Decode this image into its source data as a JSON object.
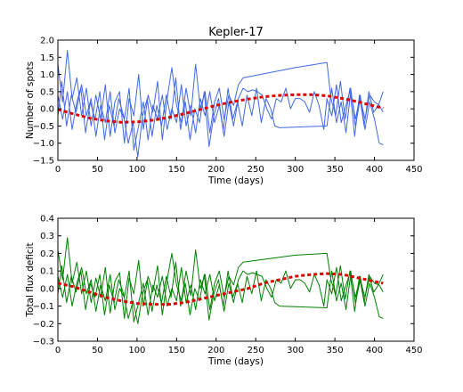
{
  "chart_data": [
    {
      "type": "line",
      "title": "Kepler-17",
      "xlabel": "Time (days)",
      "ylabel": "Number of spots",
      "xlim": [
        0,
        450
      ],
      "ylim": [
        -1.5,
        2.0
      ],
      "xticks": [
        "0",
        "50",
        "100",
        "150",
        "200",
        "250",
        "300",
        "350",
        "400",
        "450"
      ],
      "xtick_values": [
        0,
        50,
        100,
        150,
        200,
        250,
        300,
        350,
        400,
        450
      ],
      "yticks": [
        "2.0",
        "1.5",
        "1.0",
        "0.5",
        "0.0",
        "−0.5",
        "−1.0",
        "−1.5"
      ],
      "ytick_values": [
        2.0,
        1.5,
        1.0,
        0.5,
        0.0,
        -0.5,
        -1.0,
        -1.5
      ],
      "grid": false,
      "series": [
        {
          "color": "#4169e1",
          "style": "solid",
          "x": [
            0,
            6,
            12,
            18,
            24,
            30,
            36,
            42,
            48,
            54,
            60,
            66,
            72,
            78,
            84,
            90,
            96,
            102,
            108,
            114,
            120,
            126,
            132,
            138,
            144,
            150,
            156,
            162,
            168,
            174,
            180,
            186,
            192,
            198,
            204,
            210,
            216,
            222,
            228,
            234,
            300,
            340,
            345,
            351,
            357,
            363,
            369,
            375,
            381,
            387,
            393,
            399,
            405,
            411
          ],
          "y": [
            1.3,
            0.2,
            1.7,
            0.3,
            0.9,
            -0.2,
            0.6,
            -0.5,
            0.4,
            -0.3,
            0.7,
            -0.8,
            0.2,
            0.5,
            -1.0,
            0.3,
            -0.2,
            1.0,
            -0.6,
            0.4,
            -0.1,
            0.8,
            -0.9,
            0.3,
            1.2,
            0.1,
            -0.4,
            0.6,
            -0.2,
            1.3,
            0.0,
            0.5,
            -0.7,
            0.2,
            0.6,
            -0.3,
            0.4,
            0.1,
            0.7,
            0.9,
            1.2,
            1.35,
            0.3,
            -0.2,
            0.8,
            -0.3,
            0.6,
            -0.8,
            0.4,
            -0.5,
            0.5,
            -0.1,
            0.1,
            0.5
          ]
        },
        {
          "color": "#4169e1",
          "style": "solid",
          "x": [
            0,
            5,
            11,
            17,
            23,
            29,
            35,
            41,
            47,
            53,
            59,
            65,
            71,
            77,
            83,
            89,
            95,
            101,
            107,
            113,
            119,
            125,
            131,
            137,
            143,
            149,
            155,
            161,
            167,
            173,
            179,
            185,
            191,
            197,
            203,
            209,
            215,
            221,
            227,
            233,
            239,
            245,
            251,
            257,
            263,
            269,
            274,
            280,
            340,
            346,
            352,
            358,
            364,
            370,
            376,
            382,
            388,
            394,
            400,
            406,
            411
          ],
          "y": [
            -0.2,
            0.8,
            -0.5,
            0.4,
            -0.1,
            0.6,
            -0.7,
            0.2,
            -0.3,
            0.5,
            -0.9,
            0.1,
            -0.5,
            0.3,
            -0.2,
            -1.0,
            -0.4,
            -1.4,
            -0.2,
            0.3,
            -0.8,
            0.1,
            -0.5,
            0.4,
            -0.3,
            0.9,
            -0.6,
            0.2,
            -0.9,
            0.0,
            -0.4,
            0.5,
            -1.1,
            -0.2,
            0.3,
            -0.6,
            0.6,
            -0.3,
            0.2,
            -0.5,
            0.4,
            -0.2,
            0.6,
            -0.4,
            0.3,
            0.0,
            -0.5,
            -0.55,
            -0.5,
            0.6,
            -0.4,
            0.2,
            -0.7,
            0.5,
            -0.3,
            0.4,
            -0.6,
            0.2,
            -0.3,
            -1.0,
            -1.05
          ]
        },
        {
          "color": "#4169e1",
          "style": "solid",
          "x": [
            0,
            6,
            12,
            18,
            24,
            30,
            36,
            42,
            48,
            54,
            60,
            66,
            72,
            78,
            84,
            90,
            96,
            102,
            108,
            114,
            120,
            126,
            132,
            138,
            144,
            150,
            156,
            162,
            168,
            174,
            180,
            186,
            192,
            198,
            204,
            210,
            216,
            222,
            228,
            234,
            240,
            246,
            252,
            258,
            264,
            270,
            276,
            282,
            288,
            294,
            300,
            306,
            312,
            318,
            324,
            330,
            336,
            340,
            346,
            352,
            358,
            364,
            370,
            376,
            382,
            388,
            394,
            400,
            406,
            411
          ],
          "y": [
            0.4,
            -0.3,
            0.5,
            -0.6,
            0.2,
            0.7,
            -0.2,
            0.3,
            -0.8,
            0.1,
            -0.4,
            0.5,
            -0.7,
            0.0,
            -0.3,
            0.6,
            -1.2,
            -0.5,
            0.2,
            -0.9,
            0.1,
            -0.3,
            0.4,
            -0.6,
            0.0,
            -0.4,
            0.7,
            -0.5,
            0.1,
            -0.7,
            0.3,
            -0.2,
            0.5,
            -0.4,
            0.1,
            -0.8,
            0.2,
            -0.5,
            0.3,
            0.6,
            0.5,
            0.55,
            0.5,
            0.4,
            0.0,
            -0.3,
            0.3,
            0.2,
            0.6,
            0.0,
            0.3,
            0.3,
            0.2,
            -0.1,
            0.5,
            0.1,
            -0.6,
            0.3,
            -0.2,
            0.7,
            -0.4,
            0.1,
            0.6,
            -0.5,
            0.3,
            -0.3,
            0.4,
            0.2,
            0.1,
            -0.1
          ]
        },
        {
          "color": "#dd0000",
          "style": "dashed",
          "x": [
            0,
            20,
            40,
            60,
            80,
            100,
            120,
            140,
            160,
            180,
            200,
            220,
            240,
            260,
            280,
            300,
            320,
            340,
            360,
            380,
            400,
            411
          ],
          "y": [
            -0.02,
            -0.15,
            -0.27,
            -0.35,
            -0.39,
            -0.38,
            -0.33,
            -0.25,
            -0.14,
            -0.02,
            0.1,
            0.2,
            0.28,
            0.35,
            0.39,
            0.41,
            0.41,
            0.38,
            0.3,
            0.2,
            0.08,
            0.02
          ]
        }
      ]
    },
    {
      "type": "line",
      "xlabel": "Time (days)",
      "ylabel": "Total flux deficit",
      "xlim": [
        0,
        450
      ],
      "ylim": [
        -0.3,
        0.4
      ],
      "xticks": [
        "0",
        "50",
        "100",
        "150",
        "200",
        "250",
        "300",
        "350",
        "400",
        "450"
      ],
      "xtick_values": [
        0,
        50,
        100,
        150,
        200,
        250,
        300,
        350,
        400,
        450
      ],
      "yticks": [
        "0.4",
        "0.3",
        "0.2",
        "0.1",
        "0.0",
        "−0.1",
        "−0.2",
        "−0.3"
      ],
      "ytick_values": [
        0.4,
        0.3,
        0.2,
        0.1,
        0.0,
        -0.1,
        -0.2,
        -0.3
      ],
      "grid": false,
      "series": [
        {
          "color": "#008000",
          "style": "solid",
          "x": [
            0,
            6,
            12,
            18,
            24,
            30,
            36,
            42,
            48,
            54,
            60,
            66,
            72,
            78,
            84,
            90,
            96,
            102,
            108,
            114,
            120,
            126,
            132,
            138,
            144,
            150,
            156,
            162,
            168,
            174,
            180,
            186,
            192,
            198,
            204,
            210,
            216,
            222,
            228,
            234,
            300,
            340,
            345,
            351,
            357,
            363,
            369,
            375,
            381,
            387,
            393,
            399,
            405,
            411
          ],
          "y": [
            0.22,
            0.05,
            0.29,
            0.03,
            0.15,
            -0.03,
            0.1,
            -0.08,
            0.06,
            -0.05,
            0.12,
            -0.14,
            0.04,
            0.09,
            -0.17,
            0.06,
            -0.03,
            0.16,
            -0.1,
            0.07,
            -0.02,
            0.13,
            -0.15,
            0.05,
            0.2,
            0.02,
            -0.07,
            0.1,
            -0.04,
            0.22,
            0.0,
            0.08,
            -0.12,
            0.03,
            0.1,
            -0.05,
            0.07,
            0.02,
            0.12,
            0.15,
            0.19,
            0.2,
            0.05,
            -0.04,
            0.13,
            -0.06,
            0.1,
            -0.13,
            0.07,
            -0.08,
            0.08,
            -0.02,
            0.02,
            0.08
          ]
        },
        {
          "color": "#008000",
          "style": "solid",
          "x": [
            0,
            5,
            11,
            17,
            23,
            29,
            35,
            41,
            47,
            53,
            59,
            65,
            71,
            77,
            83,
            89,
            95,
            101,
            107,
            113,
            119,
            125,
            131,
            137,
            143,
            149,
            155,
            161,
            167,
            173,
            179,
            185,
            191,
            197,
            203,
            209,
            215,
            221,
            227,
            233,
            239,
            245,
            251,
            257,
            263,
            269,
            274,
            280,
            340,
            346,
            352,
            358,
            364,
            370,
            376,
            382,
            388,
            394,
            400,
            406,
            411
          ],
          "y": [
            -0.03,
            0.13,
            -0.08,
            0.07,
            -0.02,
            0.1,
            -0.12,
            0.03,
            -0.05,
            0.08,
            -0.15,
            0.02,
            -0.08,
            0.05,
            -0.03,
            -0.17,
            -0.07,
            -0.2,
            -0.03,
            0.05,
            -0.13,
            0.02,
            -0.08,
            0.07,
            -0.05,
            0.15,
            -0.1,
            0.03,
            -0.15,
            0.0,
            -0.07,
            0.08,
            -0.18,
            -0.03,
            0.05,
            -0.1,
            0.1,
            -0.05,
            0.03,
            -0.08,
            0.07,
            -0.03,
            0.1,
            -0.07,
            0.05,
            0.0,
            -0.08,
            -0.1,
            -0.11,
            0.1,
            -0.07,
            0.03,
            -0.12,
            0.08,
            -0.05,
            0.07,
            -0.1,
            0.03,
            -0.05,
            -0.16,
            -0.17
          ]
        },
        {
          "color": "#008000",
          "style": "solid",
          "x": [
            0,
            6,
            12,
            18,
            24,
            30,
            36,
            42,
            48,
            54,
            60,
            66,
            72,
            78,
            84,
            90,
            96,
            102,
            108,
            114,
            120,
            126,
            132,
            138,
            144,
            150,
            156,
            162,
            168,
            174,
            180,
            186,
            192,
            198,
            204,
            210,
            216,
            222,
            228,
            234,
            240,
            246,
            252,
            258,
            264,
            270,
            276,
            282,
            288,
            294,
            300,
            306,
            312,
            318,
            324,
            330,
            336,
            340,
            346,
            352,
            358,
            364,
            370,
            376,
            382,
            388,
            394,
            400,
            406,
            411
          ],
          "y": [
            0.07,
            -0.05,
            0.08,
            -0.1,
            0.03,
            0.12,
            -0.03,
            0.05,
            -0.13,
            0.02,
            -0.07,
            0.08,
            -0.12,
            0.0,
            -0.05,
            0.1,
            -0.19,
            -0.08,
            0.03,
            -0.15,
            0.02,
            -0.05,
            0.07,
            -0.1,
            0.0,
            -0.07,
            0.12,
            -0.08,
            0.02,
            -0.12,
            0.05,
            -0.03,
            0.08,
            -0.07,
            0.02,
            -0.13,
            0.03,
            -0.08,
            0.05,
            0.1,
            0.08,
            0.09,
            0.08,
            0.07,
            0.0,
            -0.05,
            0.05,
            0.03,
            0.1,
            0.0,
            0.05,
            0.05,
            0.03,
            -0.02,
            0.08,
            0.02,
            -0.1,
            0.05,
            -0.03,
            0.12,
            -0.07,
            0.02,
            0.1,
            -0.08,
            0.05,
            -0.05,
            0.07,
            0.03,
            0.02,
            -0.02
          ]
        },
        {
          "color": "#dd0000",
          "style": "dashed",
          "x": [
            0,
            20,
            40,
            60,
            80,
            100,
            120,
            140,
            160,
            180,
            200,
            220,
            240,
            260,
            280,
            300,
            320,
            340,
            360,
            380,
            400,
            411
          ],
          "y": [
            0.03,
            0.01,
            -0.02,
            -0.05,
            -0.07,
            -0.085,
            -0.09,
            -0.09,
            -0.08,
            -0.06,
            -0.04,
            -0.02,
            0.0,
            0.03,
            0.05,
            0.07,
            0.08,
            0.085,
            0.08,
            0.06,
            0.04,
            0.03
          ]
        }
      ]
    }
  ]
}
